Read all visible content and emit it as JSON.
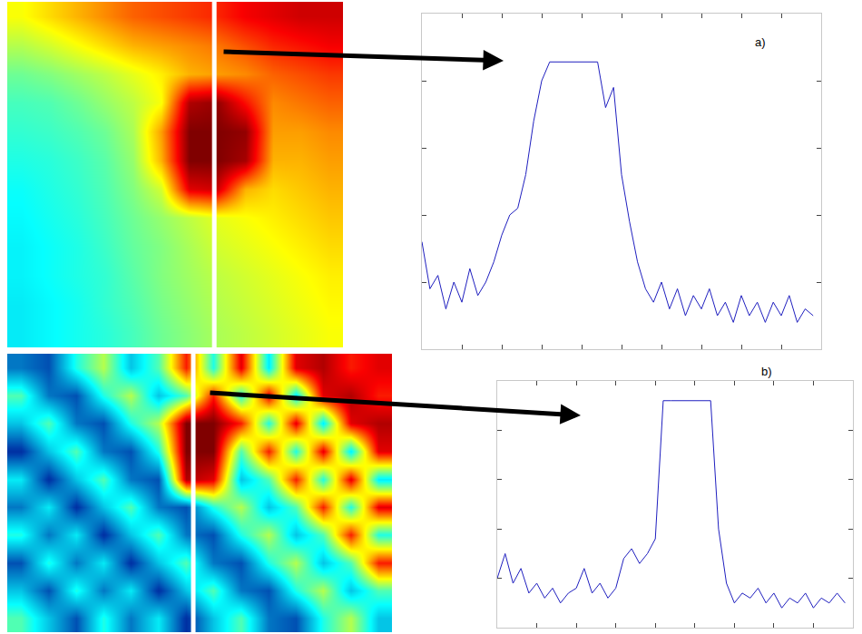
{
  "chart_data": [
    {
      "type": "heatmap",
      "tick_labels": false,
      "zlim": [
        0,
        1
      ],
      "profile_x": 6.9,
      "z": [
        [
          0.62,
          0.66,
          0.7,
          0.74,
          0.78,
          0.8,
          0.82,
          0.84,
          0.88,
          0.9,
          0.92,
          0.92
        ],
        [
          0.55,
          0.58,
          0.62,
          0.66,
          0.7,
          0.72,
          0.74,
          0.76,
          0.8,
          0.84,
          0.86,
          0.88
        ],
        [
          0.48,
          0.5,
          0.53,
          0.56,
          0.6,
          0.64,
          0.7,
          0.72,
          0.74,
          0.78,
          0.8,
          0.82
        ],
        [
          0.44,
          0.45,
          0.48,
          0.52,
          0.56,
          0.62,
          0.95,
          0.98,
          0.86,
          0.74,
          0.76,
          0.78
        ],
        [
          0.42,
          0.43,
          0.45,
          0.48,
          0.54,
          0.72,
          1,
          1,
          0.98,
          0.72,
          0.72,
          0.74
        ],
        [
          0.4,
          0.41,
          0.43,
          0.46,
          0.52,
          0.7,
          1,
          1,
          0.96,
          0.7,
          0.7,
          0.72
        ],
        [
          0.38,
          0.4,
          0.42,
          0.45,
          0.5,
          0.58,
          0.9,
          0.92,
          0.7,
          0.66,
          0.68,
          0.7
        ],
        [
          0.37,
          0.39,
          0.41,
          0.44,
          0.48,
          0.52,
          0.56,
          0.6,
          0.62,
          0.64,
          0.66,
          0.68
        ],
        [
          0.36,
          0.38,
          0.4,
          0.43,
          0.47,
          0.5,
          0.54,
          0.58,
          0.6,
          0.62,
          0.64,
          0.66
        ],
        [
          0.36,
          0.38,
          0.4,
          0.42,
          0.46,
          0.5,
          0.53,
          0.56,
          0.58,
          0.6,
          0.62,
          0.64
        ],
        [
          0.35,
          0.37,
          0.39,
          0.42,
          0.45,
          0.49,
          0.52,
          0.55,
          0.57,
          0.59,
          0.61,
          0.63
        ],
        [
          0.35,
          0.37,
          0.39,
          0.41,
          0.44,
          0.48,
          0.51,
          0.54,
          0.56,
          0.58,
          0.6,
          0.62
        ]
      ]
    },
    {
      "type": "line",
      "annotation": "a)",
      "color": "#1f1fbf",
      "grid": false,
      "tick_labels": false,
      "xlim": [
        0,
        10
      ],
      "xticks": [
        1,
        2,
        3,
        4,
        5,
        6,
        7,
        8,
        9
      ],
      "ylim": [
        0,
        5
      ],
      "yticks": [
        1,
        2,
        3,
        4
      ],
      "x": [
        0,
        0.2,
        0.4,
        0.6,
        0.8,
        1,
        1.2,
        1.4,
        1.6,
        1.8,
        2,
        2.2,
        2.4,
        2.6,
        2.8,
        3,
        3.2,
        3.4,
        3.6,
        3.8,
        4,
        4.2,
        4.4,
        4.6,
        4.8,
        5,
        5.2,
        5.4,
        5.6,
        5.8,
        6,
        6.2,
        6.4,
        6.6,
        6.8,
        7,
        7.2,
        7.4,
        7.6,
        7.8,
        8,
        8.2,
        8.4,
        8.6,
        8.8,
        9,
        9.2,
        9.4,
        9.6,
        9.8
      ],
      "values": [
        1.6,
        0.9,
        1.1,
        0.6,
        1.0,
        0.7,
        1.2,
        0.8,
        1.0,
        1.3,
        1.7,
        2.0,
        2.1,
        2.6,
        3.4,
        4.0,
        4.28,
        4.28,
        4.28,
        4.28,
        4.28,
        4.28,
        4.28,
        3.6,
        3.9,
        2.6,
        1.9,
        1.3,
        0.9,
        0.7,
        1.0,
        0.6,
        0.9,
        0.5,
        0.8,
        0.6,
        0.9,
        0.5,
        0.7,
        0.4,
        0.8,
        0.5,
        0.7,
        0.4,
        0.7,
        0.5,
        0.8,
        0.4,
        0.6,
        0.5
      ]
    },
    {
      "type": "heatmap",
      "tick_labels": false,
      "zlim": [
        0,
        1
      ],
      "profile_x": 6.27,
      "z": [
        [
          0.2,
          0.15,
          0.4,
          0.55,
          0.3,
          0.45,
          0.85,
          0.4,
          0.9,
          0.35,
          0.9,
          0.95,
          0.85,
          0.9
        ],
        [
          0.45,
          0.2,
          0.15,
          0.4,
          0.55,
          0.3,
          0.45,
          0.85,
          0.4,
          0.9,
          0.35,
          0.9,
          0.95,
          0.85
        ],
        [
          0.3,
          0.45,
          0.2,
          0.15,
          0.4,
          0.55,
          1,
          1,
          0.85,
          0.4,
          0.9,
          0.35,
          0.9,
          0.95
        ],
        [
          0.1,
          0.3,
          0.45,
          0.2,
          0.15,
          0.4,
          1,
          1,
          0.45,
          0.85,
          0.4,
          0.9,
          0.35,
          0.9
        ],
        [
          0.35,
          0.1,
          0.3,
          0.45,
          0.2,
          0.15,
          0.95,
          0.9,
          0.3,
          0.45,
          0.85,
          0.4,
          0.9,
          0.35
        ],
        [
          0.2,
          0.35,
          0.1,
          0.3,
          0.45,
          0.2,
          0.15,
          0.4,
          0.55,
          0.3,
          0.45,
          0.85,
          0.4,
          0.9
        ],
        [
          0.4,
          0.2,
          0.35,
          0.1,
          0.3,
          0.45,
          0.2,
          0.15,
          0.4,
          0.55,
          0.3,
          0.45,
          0.85,
          0.4
        ],
        [
          0.15,
          0.4,
          0.2,
          0.35,
          0.1,
          0.3,
          0.45,
          0.2,
          0.15,
          0.4,
          0.55,
          0.3,
          0.45,
          0.85
        ],
        [
          0.3,
          0.15,
          0.4,
          0.2,
          0.35,
          0.1,
          0.3,
          0.45,
          0.2,
          0.15,
          0.4,
          0.55,
          0.3,
          0.45
        ],
        [
          0.45,
          0.3,
          0.15,
          0.4,
          0.2,
          0.35,
          0.1,
          0.3,
          0.45,
          0.2,
          0.15,
          0.4,
          0.55,
          0.3
        ]
      ]
    },
    {
      "type": "line",
      "annotation": "b)",
      "color": "#1f1fbf",
      "grid": false,
      "tick_labels": false,
      "xlim": [
        0,
        9
      ],
      "xticks": [
        1,
        2,
        3,
        4,
        5,
        6,
        7,
        8
      ],
      "ylim": [
        0,
        5
      ],
      "yticks": [
        1,
        2,
        3,
        4
      ],
      "x": [
        0,
        0.2,
        0.4,
        0.6,
        0.8,
        1,
        1.2,
        1.4,
        1.6,
        1.8,
        2,
        2.2,
        2.4,
        2.6,
        2.8,
        3,
        3.2,
        3.4,
        3.6,
        3.8,
        4,
        4.2,
        4.4,
        4.6,
        4.8,
        5,
        5.2,
        5.4,
        5.6,
        5.8,
        6,
        6.2,
        6.4,
        6.6,
        6.8,
        7,
        7.2,
        7.4,
        7.6,
        7.8,
        8,
        8.2,
        8.4,
        8.6,
        8.8
      ],
      "values": [
        1.0,
        1.5,
        0.9,
        1.2,
        0.7,
        0.9,
        0.6,
        0.8,
        0.5,
        0.7,
        0.8,
        1.2,
        0.7,
        0.9,
        0.6,
        0.8,
        1.4,
        1.6,
        1.3,
        1.5,
        1.8,
        4.6,
        4.6,
        4.6,
        4.6,
        4.6,
        4.6,
        4.6,
        2.0,
        0.9,
        0.5,
        0.7,
        0.6,
        0.8,
        0.5,
        0.7,
        0.4,
        0.6,
        0.5,
        0.7,
        0.4,
        0.6,
        0.5,
        0.7,
        0.5
      ]
    }
  ]
}
